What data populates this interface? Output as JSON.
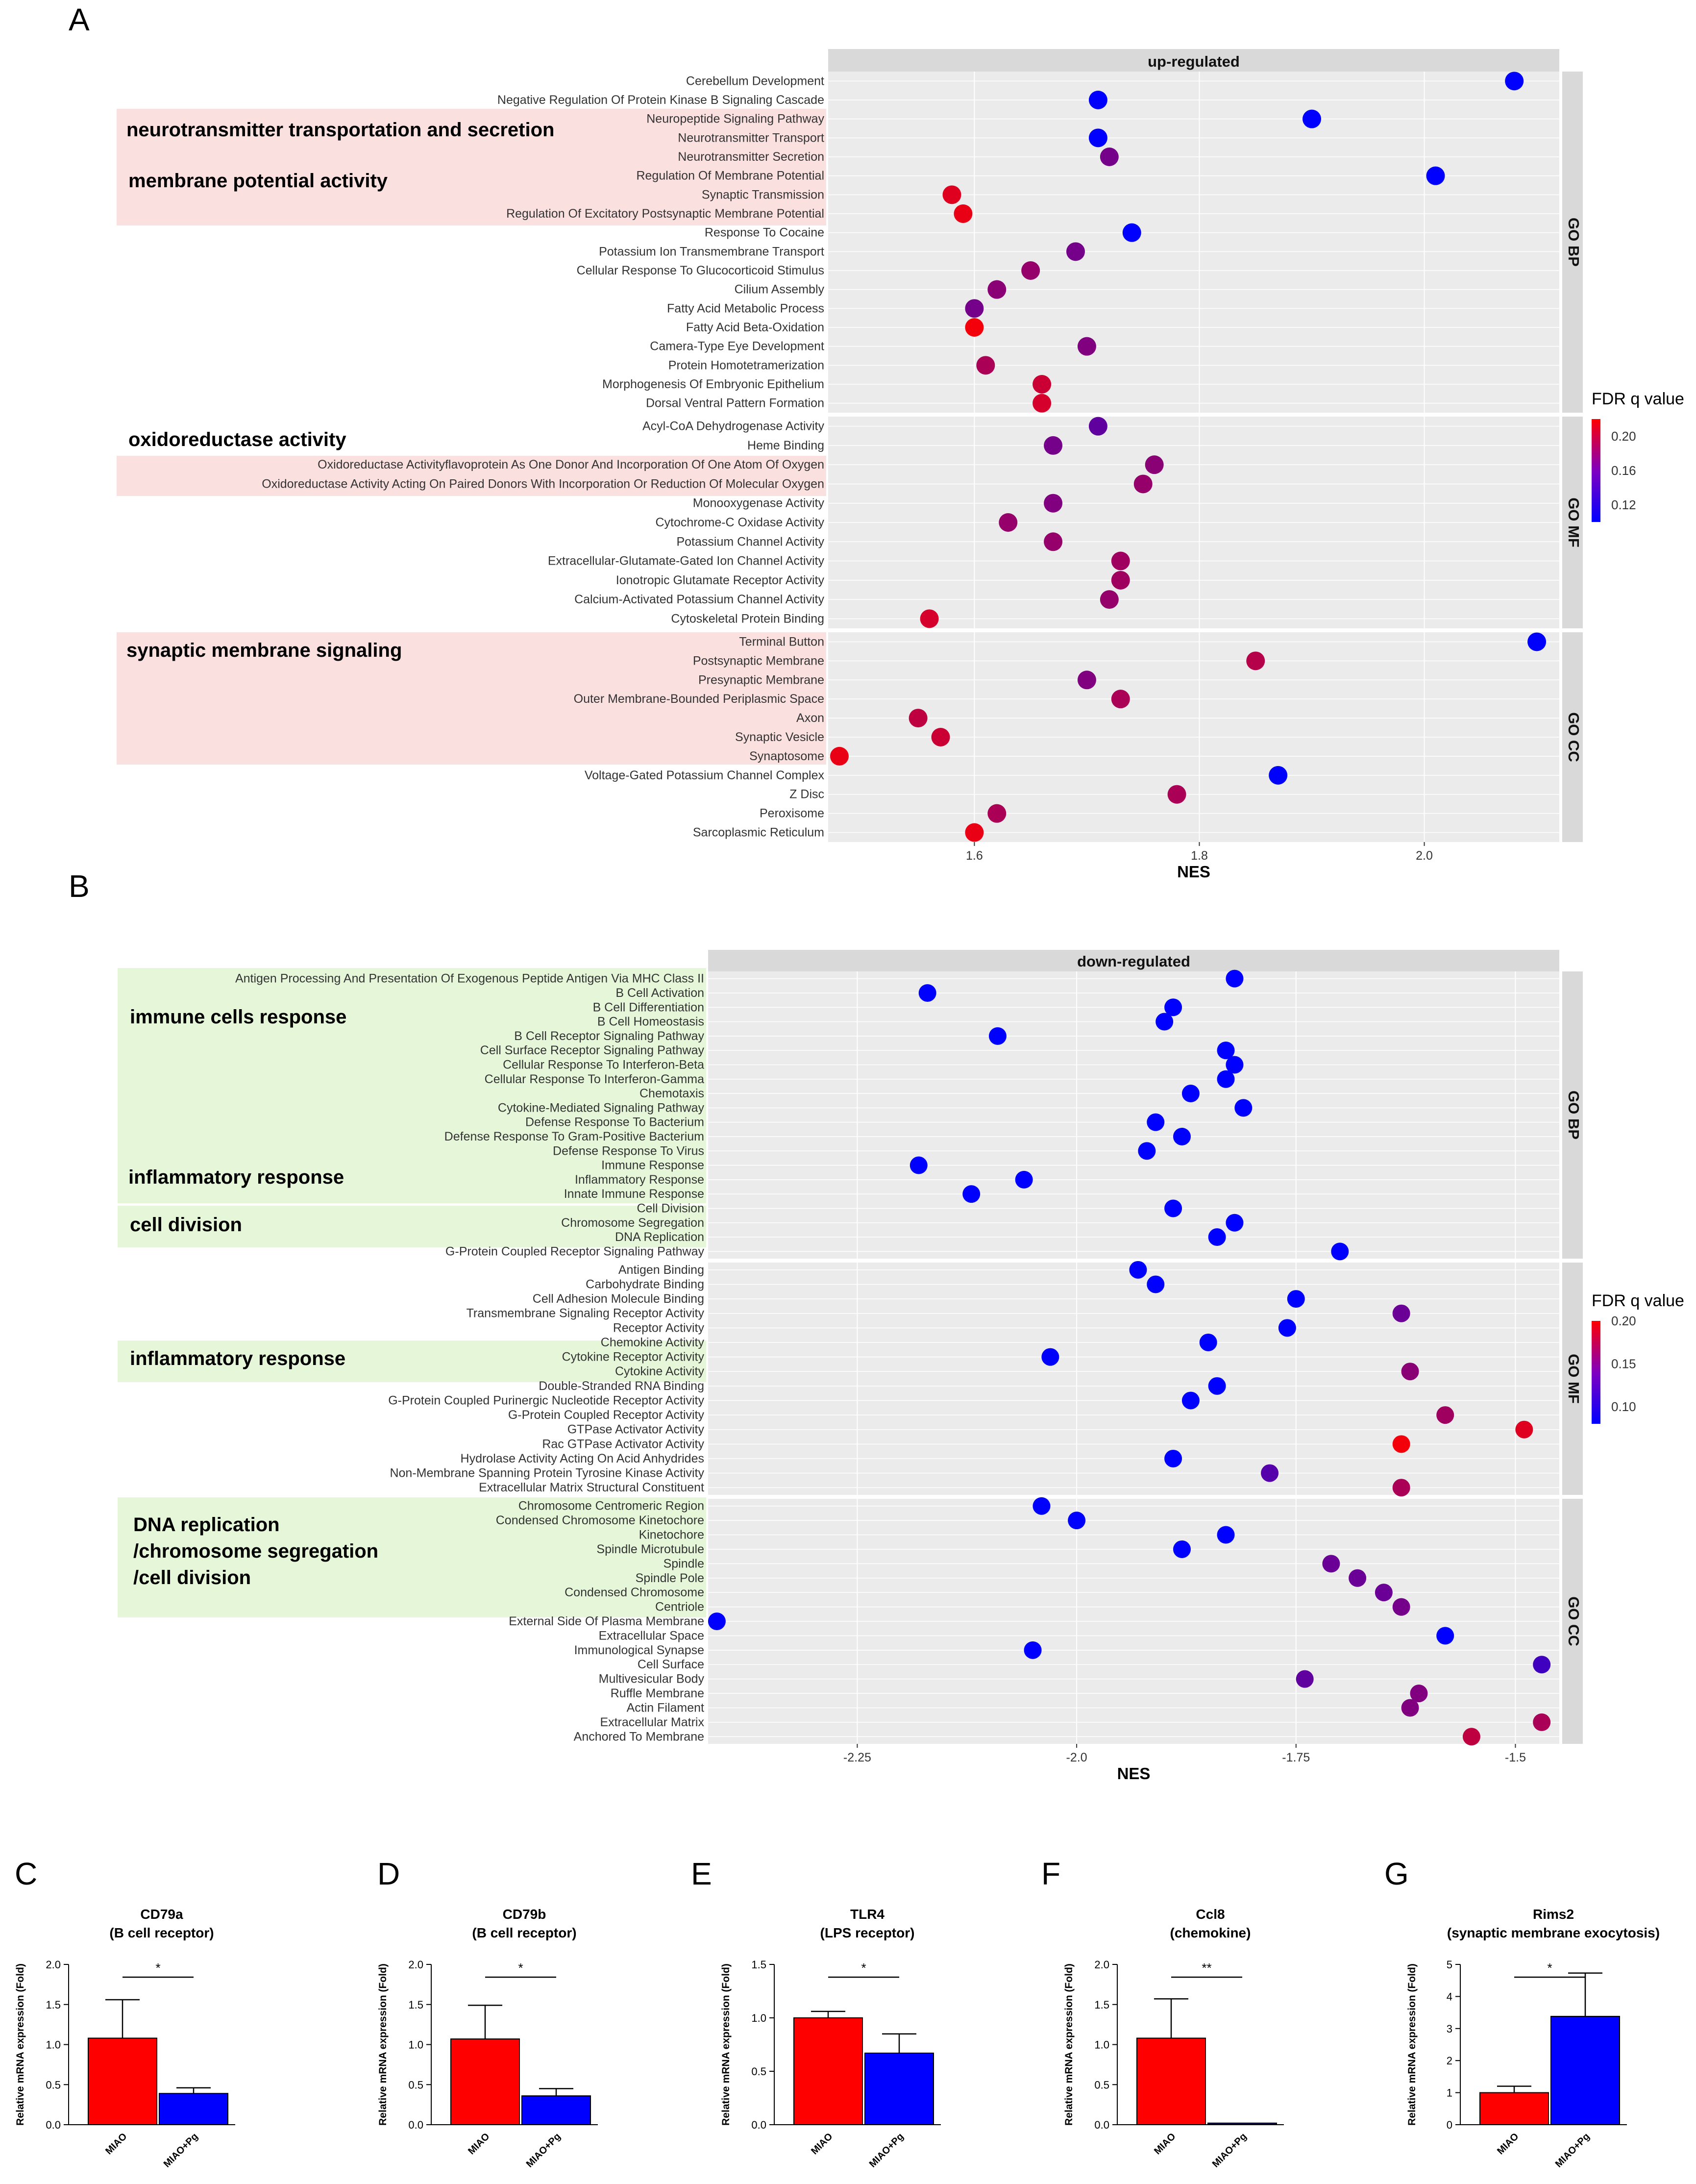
{
  "colors": {
    "low_fdr": "#0000ff",
    "high_fdr": "#ff0000",
    "highlight_up": "#fbe0e0",
    "highlight_down": "#e6f7d9",
    "mid_purple": "#8000c0"
  },
  "panel_letters": [
    "A",
    "B",
    "C",
    "D",
    "E",
    "F",
    "G"
  ],
  "chart_data": [
    {
      "type": "scatter",
      "panel": "A",
      "strip_title": "up-regulated",
      "xlabel": "NES",
      "xlim": [
        1.47,
        2.12
      ],
      "xticks": [
        1.6,
        1.8,
        2.0
      ],
      "legend": {
        "title": "FDR q value",
        "ticks": [
          0.2,
          0.16,
          0.12
        ],
        "range": [
          0.1,
          0.22
        ]
      },
      "facets": [
        "GO BP",
        "GO MF",
        "GO CC"
      ],
      "highlight_labels": [
        "neurotransmitter transportation and secretion",
        "membrane potential activity",
        "oxidoreductase activity",
        "synaptic membrane signaling"
      ],
      "terms": [
        {
          "facet": "GO BP",
          "label": "Cerebellum Development",
          "nes": 2.08,
          "fdr": 0.1
        },
        {
          "facet": "GO BP",
          "label": "Negative Regulation Of Protein Kinase B Signaling Cascade",
          "nes": 1.71,
          "fdr": 0.1
        },
        {
          "facet": "GO BP",
          "label": "Neuropeptide Signaling Pathway",
          "nes": 1.9,
          "fdr": 0.1,
          "hl": true
        },
        {
          "facet": "GO BP",
          "label": "Neurotransmitter Transport",
          "nes": 1.71,
          "fdr": 0.1,
          "hl": true
        },
        {
          "facet": "GO BP",
          "label": "Neurotransmitter Secretion",
          "nes": 1.72,
          "fdr": 0.155,
          "hl": true
        },
        {
          "facet": "GO BP",
          "label": "Regulation Of Membrane Potential",
          "nes": 2.01,
          "fdr": 0.1,
          "hl": true
        },
        {
          "facet": "GO BP",
          "label": "Synaptic Transmission",
          "nes": 1.58,
          "fdr": 0.205,
          "hl": true
        },
        {
          "facet": "GO BP",
          "label": "Regulation Of Excitatory Postsynaptic Membrane Potential",
          "nes": 1.59,
          "fdr": 0.21,
          "hl": true
        },
        {
          "facet": "GO BP",
          "label": "Response To Cocaine",
          "nes": 1.74,
          "fdr": 0.1
        },
        {
          "facet": "GO BP",
          "label": "Potassium Ion Transmembrane Transport",
          "nes": 1.69,
          "fdr": 0.155
        },
        {
          "facet": "GO BP",
          "label": "Cellular Response To Glucocorticoid Stimulus",
          "nes": 1.65,
          "fdr": 0.17
        },
        {
          "facet": "GO BP",
          "label": "Cilium Assembly",
          "nes": 1.62,
          "fdr": 0.165
        },
        {
          "facet": "GO BP",
          "label": "Fatty Acid Metabolic Process",
          "nes": 1.6,
          "fdr": 0.155
        },
        {
          "facet": "GO BP",
          "label": "Fatty Acid Beta-Oxidation",
          "nes": 1.6,
          "fdr": 0.215
        },
        {
          "facet": "GO BP",
          "label": "Camera-Type Eye Development",
          "nes": 1.7,
          "fdr": 0.16
        },
        {
          "facet": "GO BP",
          "label": "Protein Homotetramerization",
          "nes": 1.61,
          "fdr": 0.18
        },
        {
          "facet": "GO BP",
          "label": "Morphogenesis Of Embryonic Epithelium",
          "nes": 1.66,
          "fdr": 0.195
        },
        {
          "facet": "GO BP",
          "label": "Dorsal Ventral Pattern Formation",
          "nes": 1.66,
          "fdr": 0.2
        },
        {
          "facet": "GO MF",
          "label": "Acyl-CoA Dehydrogenase Activity",
          "nes": 1.71,
          "fdr": 0.145
        },
        {
          "facet": "GO MF",
          "label": "Heme Binding",
          "nes": 1.67,
          "fdr": 0.155
        },
        {
          "facet": "GO MF",
          "label": "Oxidoreductase Activityflavoprotein As One Donor And Incorporation Of One Atom Of Oxygen",
          "nes": 1.76,
          "fdr": 0.165,
          "hl": true
        },
        {
          "facet": "GO MF",
          "label": "Oxidoreductase Activity Acting On Paired Donors With Incorporation Or Reduction Of Molecular Oxygen",
          "nes": 1.75,
          "fdr": 0.17,
          "hl": true
        },
        {
          "facet": "GO MF",
          "label": "Monooxygenase Activity",
          "nes": 1.67,
          "fdr": 0.16
        },
        {
          "facet": "GO MF",
          "label": "Cytochrome-C Oxidase Activity",
          "nes": 1.63,
          "fdr": 0.17
        },
        {
          "facet": "GO MF",
          "label": "Potassium Channel Activity",
          "nes": 1.67,
          "fdr": 0.17
        },
        {
          "facet": "GO MF",
          "label": "Extracellular-Glutamate-Gated Ion Channel Activity",
          "nes": 1.73,
          "fdr": 0.175
        },
        {
          "facet": "GO MF",
          "label": "Ionotropic Glutamate Receptor Activity",
          "nes": 1.73,
          "fdr": 0.175
        },
        {
          "facet": "GO MF",
          "label": "Calcium-Activated Potassium Channel Activity",
          "nes": 1.72,
          "fdr": 0.17
        },
        {
          "facet": "GO MF",
          "label": "Cytoskeletal Protein Binding",
          "nes": 1.56,
          "fdr": 0.2
        },
        {
          "facet": "GO CC",
          "label": "Terminal Button",
          "nes": 2.1,
          "fdr": 0.1,
          "hl": true
        },
        {
          "facet": "GO CC",
          "label": "Postsynaptic Membrane",
          "nes": 1.85,
          "fdr": 0.185,
          "hl": true
        },
        {
          "facet": "GO CC",
          "label": "Presynaptic Membrane",
          "nes": 1.7,
          "fdr": 0.16,
          "hl": true
        },
        {
          "facet": "GO CC",
          "label": "Outer Membrane-Bounded Periplasmic Space",
          "nes": 1.73,
          "fdr": 0.18,
          "hl": true
        },
        {
          "facet": "GO CC",
          "label": "Axon",
          "nes": 1.55,
          "fdr": 0.19,
          "hl": true
        },
        {
          "facet": "GO CC",
          "label": "Synaptic Vesicle",
          "nes": 1.57,
          "fdr": 0.195,
          "hl": true
        },
        {
          "facet": "GO CC",
          "label": "Synaptosome",
          "nes": 1.48,
          "fdr": 0.21,
          "hl": true
        },
        {
          "facet": "GO CC",
          "label": "Voltage-Gated Potassium Channel Complex",
          "nes": 1.87,
          "fdr": 0.1
        },
        {
          "facet": "GO CC",
          "label": "Z Disc",
          "nes": 1.78,
          "fdr": 0.18
        },
        {
          "facet": "GO CC",
          "label": "Peroxisome",
          "nes": 1.62,
          "fdr": 0.18
        },
        {
          "facet": "GO CC",
          "label": "Sarcoplasmic Reticulum",
          "nes": 1.6,
          "fdr": 0.21
        }
      ]
    },
    {
      "type": "scatter",
      "panel": "B",
      "strip_title": "down-regulated",
      "xlabel": "NES",
      "xlim": [
        -2.42,
        -1.45
      ],
      "xticks": [
        -2.25,
        -2.0,
        -1.75,
        -1.5
      ],
      "legend": {
        "title": "FDR q value",
        "ticks": [
          0.2,
          0.15,
          0.1
        ],
        "range": [
          0.08,
          0.2
        ]
      },
      "facets": [
        "GO BP",
        "GO MF",
        "GO CC"
      ],
      "highlight_labels": [
        "immune cells response",
        "inflammatory response",
        "cell division",
        "inflammatory response",
        "DNA replication",
        "/chromosome segregation",
        "/cell division"
      ],
      "terms": [
        {
          "facet": "GO BP",
          "label": "Antigen Processing And Presentation Of Exogenous Peptide Antigen Via MHC Class II",
          "nes": -1.82,
          "fdr": 0.08,
          "hl": true
        },
        {
          "facet": "GO BP",
          "label": "B Cell Activation",
          "nes": -2.17,
          "fdr": 0.08,
          "hl": true
        },
        {
          "facet": "GO BP",
          "label": "B Cell Differentiation",
          "nes": -1.89,
          "fdr": 0.08,
          "hl": true
        },
        {
          "facet": "GO BP",
          "label": "B Cell Homeostasis",
          "nes": -1.9,
          "fdr": 0.08,
          "hl": true
        },
        {
          "facet": "GO BP",
          "label": "B Cell Receptor Signaling Pathway",
          "nes": -2.09,
          "fdr": 0.08,
          "hl": true
        },
        {
          "facet": "GO BP",
          "label": "Cell Surface Receptor Signaling Pathway",
          "nes": -1.83,
          "fdr": 0.08,
          "hl": true
        },
        {
          "facet": "GO BP",
          "label": "Cellular Response To Interferon-Beta",
          "nes": -1.82,
          "fdr": 0.08,
          "hl": true
        },
        {
          "facet": "GO BP",
          "label": "Cellular Response To Interferon-Gamma",
          "nes": -1.83,
          "fdr": 0.08,
          "hl": true
        },
        {
          "facet": "GO BP",
          "label": "Chemotaxis",
          "nes": -1.87,
          "fdr": 0.08,
          "hl": true
        },
        {
          "facet": "GO BP",
          "label": "Cytokine-Mediated Signaling Pathway",
          "nes": -1.81,
          "fdr": 0.08,
          "hl": true
        },
        {
          "facet": "GO BP",
          "label": "Defense Response To Bacterium",
          "nes": -1.91,
          "fdr": 0.08,
          "hl": true
        },
        {
          "facet": "GO BP",
          "label": "Defense Response To Gram-Positive Bacterium",
          "nes": -1.88,
          "fdr": 0.08,
          "hl": true
        },
        {
          "facet": "GO BP",
          "label": "Defense Response To Virus",
          "nes": -1.92,
          "fdr": 0.08,
          "hl": true
        },
        {
          "facet": "GO BP",
          "label": "Immune Response",
          "nes": -2.18,
          "fdr": 0.08,
          "hl": true
        },
        {
          "facet": "GO BP",
          "label": "Inflammatory Response",
          "nes": -2.06,
          "fdr": 0.08,
          "hl": true
        },
        {
          "facet": "GO BP",
          "label": "Innate Immune Response",
          "nes": -2.12,
          "fdr": 0.08,
          "hl": true
        },
        {
          "facet": "GO BP",
          "label": "Cell Division",
          "nes": -1.89,
          "fdr": 0.08,
          "hl": true
        },
        {
          "facet": "GO BP",
          "label": "Chromosome Segregation",
          "nes": -1.82,
          "fdr": 0.08,
          "hl": true
        },
        {
          "facet": "GO BP",
          "label": "DNA Replication",
          "nes": -1.84,
          "fdr": 0.08,
          "hl": true
        },
        {
          "facet": "GO BP",
          "label": "G-Protein Coupled Receptor Signaling Pathway",
          "nes": -1.7,
          "fdr": 0.08
        },
        {
          "facet": "GO MF",
          "label": "Antigen Binding",
          "nes": -1.93,
          "fdr": 0.08
        },
        {
          "facet": "GO MF",
          "label": "Carbohydrate Binding",
          "nes": -1.91,
          "fdr": 0.08
        },
        {
          "facet": "GO MF",
          "label": "Cell Adhesion Molecule Binding",
          "nes": -1.75,
          "fdr": 0.08
        },
        {
          "facet": "GO MF",
          "label": "Transmembrane Signaling Receptor Activity",
          "nes": -1.63,
          "fdr": 0.13
        },
        {
          "facet": "GO MF",
          "label": "Receptor Activity",
          "nes": -1.76,
          "fdr": 0.08
        },
        {
          "facet": "GO MF",
          "label": "Chemokine Activity",
          "nes": -1.85,
          "fdr": 0.08,
          "hl": true
        },
        {
          "facet": "GO MF",
          "label": "Cytokine Receptor Activity",
          "nes": -2.03,
          "fdr": 0.08,
          "hl": true
        },
        {
          "facet": "GO MF",
          "label": "Cytokine Activity",
          "nes": -1.62,
          "fdr": 0.145,
          "hl": true
        },
        {
          "facet": "GO MF",
          "label": "Double-Stranded RNA Binding",
          "nes": -1.84,
          "fdr": 0.08
        },
        {
          "facet": "GO MF",
          "label": "G-Protein Coupled Purinergic Nucleotide Receptor Activity",
          "nes": -1.87,
          "fdr": 0.08
        },
        {
          "facet": "GO MF",
          "label": "G-Protein Coupled Receptor Activity",
          "nes": -1.58,
          "fdr": 0.155
        },
        {
          "facet": "GO MF",
          "label": "GTPase Activator Activity",
          "nes": -1.49,
          "fdr": 0.185
        },
        {
          "facet": "GO MF",
          "label": "Rac GTPase Activator Activity",
          "nes": -1.63,
          "fdr": 0.195
        },
        {
          "facet": "GO MF",
          "label": "Hydrolase Activity Acting On Acid Anhydrides",
          "nes": -1.89,
          "fdr": 0.08
        },
        {
          "facet": "GO MF",
          "label": "Non-Membrane Spanning Protein Tyrosine Kinase Activity",
          "nes": -1.78,
          "fdr": 0.12
        },
        {
          "facet": "GO MF",
          "label": "Extracellular Matrix Structural Constituent",
          "nes": -1.63,
          "fdr": 0.16
        },
        {
          "facet": "GO CC",
          "label": "Chromosome Centromeric Region",
          "nes": -2.04,
          "fdr": 0.08,
          "hl": true
        },
        {
          "facet": "GO CC",
          "label": "Condensed Chromosome Kinetochore",
          "nes": -2.0,
          "fdr": 0.08,
          "hl": true
        },
        {
          "facet": "GO CC",
          "label": "Kinetochore",
          "nes": -1.83,
          "fdr": 0.08,
          "hl": true
        },
        {
          "facet": "GO CC",
          "label": "Spindle Microtubule",
          "nes": -1.88,
          "fdr": 0.08,
          "hl": true
        },
        {
          "facet": "GO CC",
          "label": "Spindle",
          "nes": -1.71,
          "fdr": 0.13,
          "hl": true
        },
        {
          "facet": "GO CC",
          "label": "Spindle Pole",
          "nes": -1.68,
          "fdr": 0.13,
          "hl": true
        },
        {
          "facet": "GO CC",
          "label": "Condensed Chromosome",
          "nes": -1.65,
          "fdr": 0.13,
          "hl": true
        },
        {
          "facet": "GO CC",
          "label": "Centriole",
          "nes": -1.63,
          "fdr": 0.135,
          "hl": true
        },
        {
          "facet": "GO CC",
          "label": "External Side Of Plasma Membrane",
          "nes": -2.41,
          "fdr": 0.08
        },
        {
          "facet": "GO CC",
          "label": "Extracellular Space",
          "nes": -1.58,
          "fdr": 0.08
        },
        {
          "facet": "GO CC",
          "label": "Immunological Synapse",
          "nes": -2.05,
          "fdr": 0.08
        },
        {
          "facet": "GO CC",
          "label": "Cell Surface",
          "nes": -1.47,
          "fdr": 0.11
        },
        {
          "facet": "GO CC",
          "label": "Multivesicular Body",
          "nes": -1.74,
          "fdr": 0.125
        },
        {
          "facet": "GO CC",
          "label": "Ruffle Membrane",
          "nes": -1.61,
          "fdr": 0.14
        },
        {
          "facet": "GO CC",
          "label": "Actin Filament",
          "nes": -1.62,
          "fdr": 0.14
        },
        {
          "facet": "GO CC",
          "label": "Extracellular Matrix",
          "nes": -1.47,
          "fdr": 0.16
        },
        {
          "facet": "GO CC",
          "label": "Anchored To Membrane",
          "nes": -1.55,
          "fdr": 0.17
        }
      ]
    },
    {
      "type": "bar",
      "panel": "C",
      "title": "CD79a",
      "subtitle": "(B cell receptor)",
      "ylabel": "Relative mRNA expression (Fold)",
      "categories": [
        "MIAO",
        "MIAO+Pg"
      ],
      "values": [
        1.08,
        0.39
      ],
      "errors": [
        0.48,
        0.07
      ],
      "colors": [
        "#ff0000",
        "#0000ff"
      ],
      "ylim": [
        0,
        2.0
      ],
      "yticks": [
        "0.0",
        "0.5",
        "1.0",
        "1.5",
        "2.0"
      ],
      "significance": "*"
    },
    {
      "type": "bar",
      "panel": "D",
      "title": "CD79b",
      "subtitle": "(B cell receptor)",
      "ylabel": "Relative mRNA expression (Fold)",
      "categories": [
        "MIAO",
        "MIAO+Pg"
      ],
      "values": [
        1.07,
        0.36
      ],
      "errors": [
        0.42,
        0.09
      ],
      "colors": [
        "#ff0000",
        "#0000ff"
      ],
      "ylim": [
        0,
        2.0
      ],
      "yticks": [
        "0.0",
        "0.5",
        "1.0",
        "1.5",
        "2.0"
      ],
      "significance": "*"
    },
    {
      "type": "bar",
      "panel": "E",
      "title": "TLR4",
      "subtitle": "(LPS receptor)",
      "ylabel": "Relative mRNA expression (Fold)",
      "categories": [
        "MIAO",
        "MIAO+Pg"
      ],
      "values": [
        1.0,
        0.67
      ],
      "errors": [
        0.06,
        0.18
      ],
      "colors": [
        "#ff0000",
        "#0000ff"
      ],
      "ylim": [
        0,
        1.5
      ],
      "yticks": [
        "0.0",
        "0.5",
        "1.0",
        "1.5"
      ],
      "significance": "*"
    },
    {
      "type": "bar",
      "panel": "F",
      "title": "Ccl8",
      "subtitle": "(chemokine)",
      "ylabel": "Relative mRNA expression (Fold)",
      "categories": [
        "MIAO",
        "MIAO+Pg"
      ],
      "values": [
        1.08,
        0.02
      ],
      "errors": [
        0.49,
        0.0
      ],
      "colors": [
        "#ff0000",
        "#0000ff"
      ],
      "ylim": [
        0,
        2.0
      ],
      "yticks": [
        "0.0",
        "0.5",
        "1.0",
        "1.5",
        "2.0"
      ],
      "significance": "**"
    },
    {
      "type": "bar",
      "panel": "G",
      "title": "Rims2",
      "subtitle": "(synaptic membrane exocytosis)",
      "ylabel": "Relative mRNA expression (Fold)",
      "categories": [
        "MIAO",
        "MIAO+Pg"
      ],
      "values": [
        1.0,
        3.38
      ],
      "errors": [
        0.2,
        1.35
      ],
      "colors": [
        "#ff0000",
        "#0000ff"
      ],
      "ylim": [
        0,
        5
      ],
      "yticks": [
        "0",
        "1",
        "2",
        "3",
        "4",
        "5"
      ],
      "significance": "*"
    }
  ]
}
